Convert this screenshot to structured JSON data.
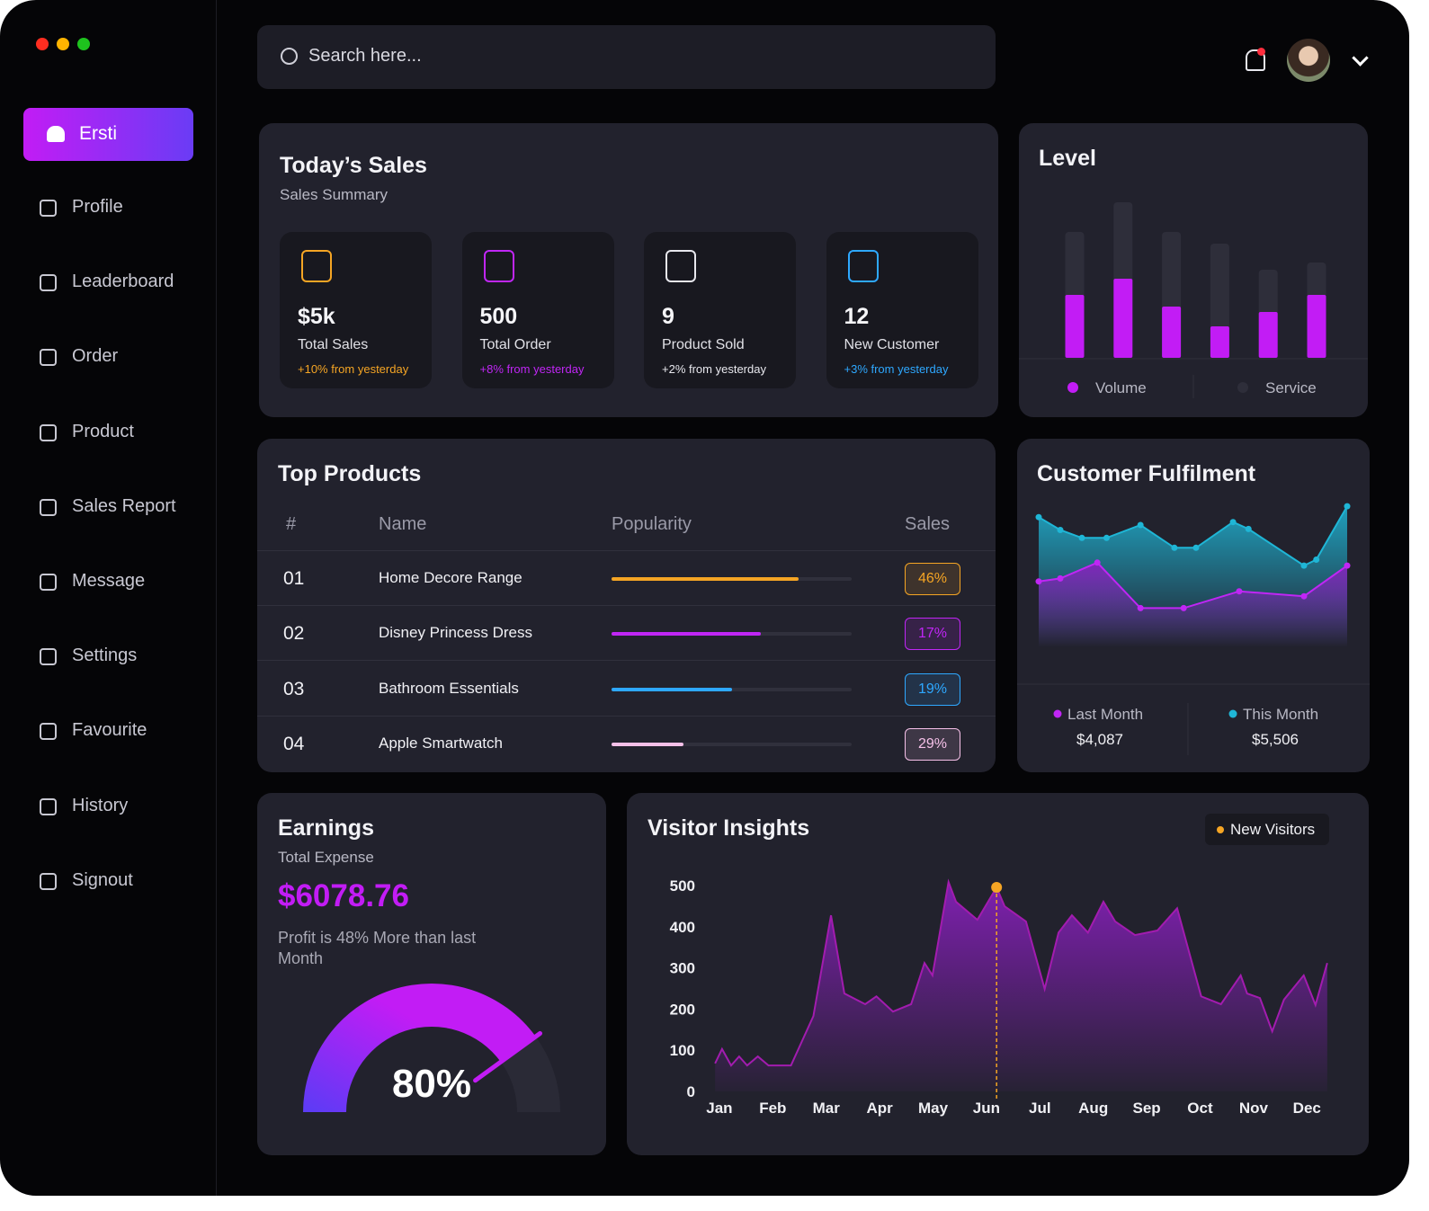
{
  "sidebar": {
    "active": "Ersti",
    "menu": [
      "Profile",
      "Leaderboard",
      "Order",
      "Product",
      "Sales Report",
      "Message",
      "Settings",
      "Favourite",
      "History",
      "Signout"
    ]
  },
  "search": {
    "placeholder": "Search here..."
  },
  "todays_sales": {
    "title": "Today’s Sales",
    "subtitle": "Sales Summary",
    "cards": [
      {
        "value": "$5k",
        "label": "Total Sales",
        "change": "+10% from yesterday",
        "color": "#f5a524"
      },
      {
        "value": "500",
        "label": "Total Order",
        "change": "+8% from yesterday",
        "color": "#c026f5"
      },
      {
        "value": "9",
        "label": "Product Sold",
        "change": "+2% from yesterday",
        "color": "#e8e8ee"
      },
      {
        "value": "12",
        "label": "New Customer",
        "change": "+3% from yesterday",
        "color": "#2ea8ff"
      }
    ]
  },
  "top_products": {
    "title": "Top Products",
    "columns": [
      "#",
      "Name",
      "Popularity",
      "Sales"
    ],
    "xlim": [
      0,
      100
    ],
    "rows": [
      {
        "rank": "01",
        "name": "Home Decore Range",
        "popularity": 78,
        "sales": "46%",
        "color": "#f5a524"
      },
      {
        "rank": "02",
        "name": "Disney Princess Dress",
        "popularity": 62,
        "sales": "17%",
        "color": "#c026f5"
      },
      {
        "rank": "03",
        "name": "Bathroom Essentials",
        "popularity": 50,
        "sales": "19%",
        "color": "#2ea8ff"
      },
      {
        "rank": "04",
        "name": "Apple Smartwatch",
        "popularity": 30,
        "sales": "29%",
        "color": "#f5c0e8"
      }
    ]
  },
  "chart_data": [
    {
      "type": "bar",
      "title": "Level",
      "categories": [
        null,
        null,
        null,
        null,
        null,
        null
      ],
      "ylim": [
        0,
        180
      ],
      "series": [
        {
          "name": "Volume",
          "color": "#c21cf5",
          "values": [
            70,
            88,
            57,
            35,
            51,
            70
          ]
        },
        {
          "name": "Service",
          "color": "#2e2e3a",
          "values": [
            140,
            173,
            140,
            127,
            98,
            106
          ]
        }
      ]
    },
    {
      "type": "line",
      "title": "Customer Fulfilment",
      "xlim": [
        0,
        100
      ],
      "ylim": [
        0,
        200
      ],
      "series": [
        {
          "name": "Last Month",
          "color": "#c026f5",
          "total": "$4,087",
          "x": [
            0,
            7,
            19,
            33,
            47,
            65,
            86,
            100
          ],
          "values": [
            103,
            106,
            122,
            76,
            76,
            93,
            88,
            119
          ]
        },
        {
          "name": "This Month",
          "color": "#1fb6d6",
          "total": "$5,506",
          "x": [
            0,
            7,
            14,
            22,
            33,
            44,
            51,
            63,
            68,
            86,
            90,
            100
          ],
          "values": [
            168,
            155,
            147,
            147,
            160,
            137,
            137,
            163,
            156,
            119,
            125,
            179
          ]
        }
      ]
    },
    {
      "type": "area",
      "title": "Visitor Insights",
      "xlim": [
        -0.15,
        11.45
      ],
      "ylim": [
        0,
        520
      ],
      "xticks": [
        {
          "value": 0,
          "label": "Jan"
        },
        {
          "value": 1,
          "label": "Feb"
        },
        {
          "value": 2,
          "label": "Mar"
        },
        {
          "value": 3,
          "label": "Apr"
        },
        {
          "value": 4,
          "label": "May"
        },
        {
          "value": 5,
          "label": "Jun"
        },
        {
          "value": 6,
          "label": "Jul"
        },
        {
          "value": 7,
          "label": "Aug"
        },
        {
          "value": 8,
          "label": "Sep"
        },
        {
          "value": 9,
          "label": "Oct"
        },
        {
          "value": 10,
          "label": "Nov"
        },
        {
          "value": 11,
          "label": "Dec"
        }
      ],
      "yticks": [
        0,
        100,
        200,
        300,
        400,
        500
      ],
      "highlight_index": 20,
      "series": [
        {
          "name": "New Visitors",
          "color": "#a21caf",
          "legend_color": "#f5a524",
          "x": [
            -0.08,
            0.05,
            0.22,
            0.37,
            0.52,
            0.72,
            0.92,
            1.34,
            1.76,
            2.09,
            2.34,
            2.73,
            2.94,
            3.25,
            3.59,
            3.84,
            3.99,
            4.29,
            4.43,
            4.83,
            5.19,
            5.34,
            5.74,
            6.09,
            6.35,
            6.6,
            6.9,
            7.19,
            7.41,
            7.78,
            8.2,
            8.57,
            9.02,
            9.39,
            9.76,
            9.88,
            10.12,
            10.35,
            10.57,
            10.94,
            11.16,
            11.38
          ],
          "values": [
            68,
            103,
            63,
            85,
            63,
            85,
            63,
            63,
            183,
            428,
            238,
            212,
            231,
            194,
            212,
            312,
            282,
            509,
            461,
            417,
            496,
            450,
            413,
            249,
            386,
            428,
            386,
            461,
            413,
            380,
            391,
            445,
            231,
            212,
            282,
            238,
            227,
            146,
            223,
            282,
            210,
            312
          ]
        }
      ]
    },
    {
      "type": "gauge",
      "title": "Earnings",
      "subtitle": "Total Expense",
      "annotations": [
        "$6078.76",
        "Profit is 48% More than last Month"
      ],
      "values": [
        80
      ],
      "value_labels": [
        "80%"
      ],
      "ylim": [
        0,
        100
      ],
      "color": "#c21cf5"
    }
  ]
}
